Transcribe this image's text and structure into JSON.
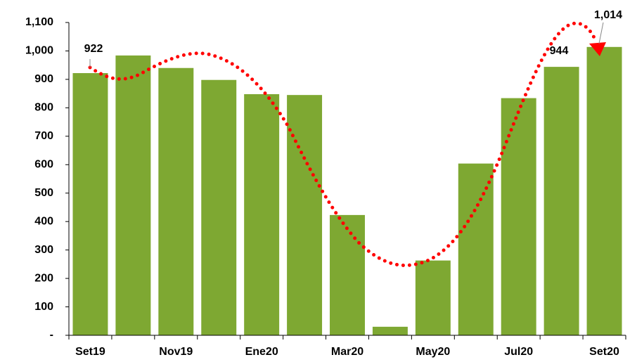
{
  "chart_data": {
    "type": "bar",
    "categories": [
      "Set19",
      null,
      "Nov19",
      null,
      "Ene20",
      null,
      "Mar20",
      null,
      "May20",
      null,
      "Jul20",
      null,
      "Set20"
    ],
    "values": [
      922,
      984,
      940,
      898,
      848,
      845,
      423,
      30,
      263,
      604,
      834,
      944,
      1014
    ],
    "value_labels": [
      "922",
      null,
      null,
      null,
      null,
      null,
      null,
      null,
      null,
      null,
      null,
      "944",
      "1,014"
    ],
    "color": "#7ea832",
    "ylim": [
      0,
      1100
    ],
    "yticks": [
      {
        "value": 0,
        "label": "-"
      },
      100,
      200,
      300,
      400,
      500,
      600,
      700,
      800,
      900,
      {
        "value": 1000,
        "label": "1,000"
      },
      {
        "value": 1100,
        "label": "1,100"
      }
    ],
    "grid": false
  }
}
